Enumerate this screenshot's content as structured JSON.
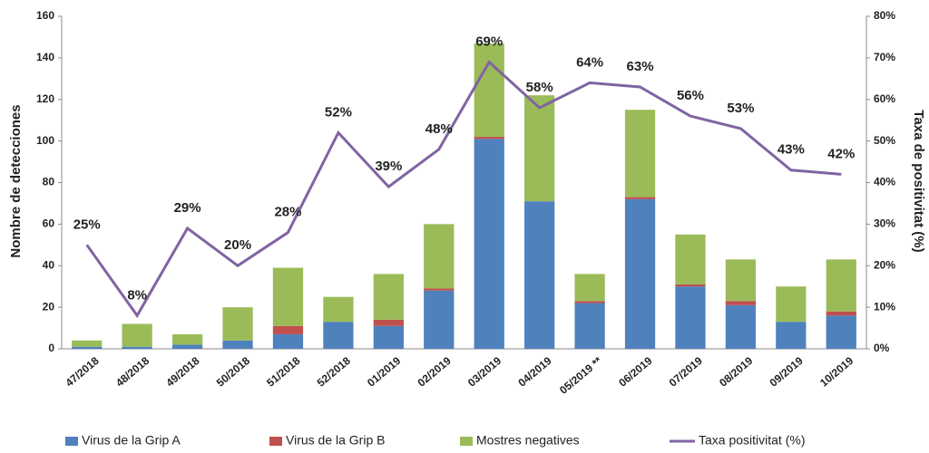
{
  "chart_data": {
    "type": "bar",
    "categories": [
      "47/2018",
      "48/2018",
      "49/2018",
      "50/2018",
      "51/2018",
      "52/2018",
      "01/2019",
      "02/2019",
      "03/2019",
      "04/2019",
      "05/2019 **",
      "06/2019",
      "07/2019",
      "08/2019",
      "09/2019",
      "10/2019"
    ],
    "series": [
      {
        "name": "Virus de la Grip A",
        "color": "#4f81bd",
        "stack": true,
        "values": [
          1,
          1,
          2,
          4,
          7,
          13,
          11,
          28,
          101,
          71,
          22,
          72,
          30,
          21,
          13,
          16
        ]
      },
      {
        "name": "Virus de la Grip B",
        "color": "#c0504d",
        "stack": true,
        "values": [
          0,
          0,
          0,
          0,
          4,
          0,
          3,
          1,
          1,
          0,
          1,
          1,
          1,
          2,
          0,
          2
        ]
      },
      {
        "name": "Mostres negatives",
        "color": "#9bbb59",
        "stack": true,
        "values": [
          3,
          11,
          5,
          16,
          28,
          12,
          22,
          31,
          45,
          51,
          13,
          42,
          24,
          20,
          17,
          25
        ]
      },
      {
        "name": "Taxa positivitat (%)",
        "color": "#8064a2",
        "type": "line",
        "axis": "y2",
        "values": [
          25,
          8,
          29,
          20,
          28,
          52,
          39,
          48,
          69,
          58,
          64,
          63,
          56,
          53,
          43,
          42
        ],
        "value_labels": [
          "25%",
          "8%",
          "29%",
          "20%",
          "28%",
          "52%",
          "39%",
          "48%",
          "69%",
          "58%",
          "64%",
          "63%",
          "56%",
          "53%",
          "43%",
          "42%"
        ]
      }
    ],
    "ylabel": "Nombre de detecciones",
    "y2label": "Taxa de positivitat (%)",
    "ylim": [
      0,
      160
    ],
    "yticks": [
      0,
      20,
      40,
      60,
      80,
      100,
      120,
      140,
      160
    ],
    "y2lim": [
      0,
      80
    ],
    "y2ticks": [
      {
        "value": 0,
        "label": "0%"
      },
      {
        "value": 10,
        "label": "10%"
      },
      {
        "value": 20,
        "label": "20%"
      },
      {
        "value": 30,
        "label": "30%"
      },
      {
        "value": 40,
        "label": "40%"
      },
      {
        "value": 50,
        "label": "50%"
      },
      {
        "value": 60,
        "label": "60%"
      },
      {
        "value": 70,
        "label": "70%"
      },
      {
        "value": 80,
        "label": "80%"
      }
    ],
    "legend": "bottom"
  }
}
